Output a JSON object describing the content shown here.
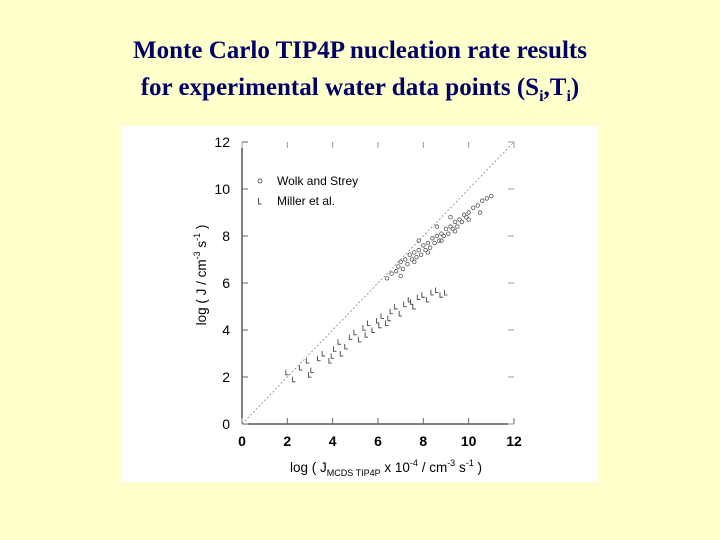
{
  "slide": {
    "title_main": "Monte Carlo TIP4P nucleation rate results",
    "title_line2_prefix": "for experimental water data points (S",
    "title_sub1": "i",
    "title_sep": ",T",
    "title_sub2": "i",
    "title_suffix": ")"
  },
  "chart_data": {
    "type": "scatter",
    "xlabel_parts": [
      "log ( J",
      "MCDS TIP4P",
      " x 10",
      "-4",
      " / cm",
      "-3",
      " s",
      "-1",
      " )"
    ],
    "ylabel_parts": [
      "log ( J / cm",
      "-3",
      " s",
      "-1",
      " )"
    ],
    "xlim": [
      0,
      12
    ],
    "ylim": [
      0,
      12
    ],
    "xticks": [
      0,
      2,
      4,
      6,
      8,
      10,
      12
    ],
    "yticks": [
      0,
      2,
      4,
      6,
      8,
      10,
      12
    ],
    "grid": false,
    "legend_position": "top-left",
    "reference_line": "y = x",
    "series": [
      {
        "name": "Wolk and Strey",
        "marker": "circle",
        "points": [
          [
            6.4,
            6.2
          ],
          [
            6.6,
            6.4
          ],
          [
            6.8,
            6.5
          ],
          [
            6.9,
            6.7
          ],
          [
            7.0,
            6.9
          ],
          [
            7.1,
            6.6
          ],
          [
            7.2,
            7.0
          ],
          [
            7.3,
            6.8
          ],
          [
            7.4,
            7.2
          ],
          [
            7.5,
            7.0
          ],
          [
            7.6,
            7.3
          ],
          [
            7.7,
            7.1
          ],
          [
            7.8,
            7.4
          ],
          [
            7.9,
            7.2
          ],
          [
            8.0,
            7.6
          ],
          [
            8.1,
            7.4
          ],
          [
            8.2,
            7.7
          ],
          [
            8.3,
            7.5
          ],
          [
            8.4,
            7.9
          ],
          [
            8.5,
            7.7
          ],
          [
            8.6,
            8.0
          ],
          [
            8.7,
            7.8
          ],
          [
            8.8,
            8.1
          ],
          [
            8.9,
            8.0
          ],
          [
            9.0,
            8.3
          ],
          [
            9.1,
            8.1
          ],
          [
            9.2,
            8.4
          ],
          [
            9.3,
            8.3
          ],
          [
            9.4,
            8.6
          ],
          [
            9.5,
            8.4
          ],
          [
            9.6,
            8.7
          ],
          [
            9.7,
            8.6
          ],
          [
            9.8,
            8.9
          ],
          [
            9.9,
            8.8
          ],
          [
            10.0,
            9.0
          ],
          [
            10.2,
            9.2
          ],
          [
            10.4,
            9.3
          ],
          [
            10.6,
            9.5
          ],
          [
            10.8,
            9.6
          ],
          [
            11.0,
            9.7
          ],
          [
            7.0,
            6.3
          ],
          [
            7.6,
            6.9
          ],
          [
            8.2,
            7.3
          ],
          [
            8.8,
            7.8
          ],
          [
            9.4,
            8.2
          ],
          [
            10.0,
            8.7
          ],
          [
            10.5,
            9.0
          ],
          [
            7.8,
            7.8
          ],
          [
            8.6,
            8.4
          ],
          [
            9.2,
            8.8
          ]
        ]
      },
      {
        "name": "Miller et al.",
        "marker": "bracket",
        "points": [
          [
            2.0,
            2.2
          ],
          [
            2.3,
            1.9
          ],
          [
            2.6,
            2.4
          ],
          [
            2.9,
            2.7
          ],
          [
            3.1,
            2.3
          ],
          [
            3.4,
            2.8
          ],
          [
            3.6,
            3.0
          ],
          [
            3.9,
            2.7
          ],
          [
            4.1,
            3.2
          ],
          [
            4.3,
            3.5
          ],
          [
            4.6,
            3.3
          ],
          [
            4.8,
            3.7
          ],
          [
            5.0,
            3.9
          ],
          [
            5.2,
            3.6
          ],
          [
            5.4,
            4.1
          ],
          [
            5.6,
            4.3
          ],
          [
            5.8,
            4.0
          ],
          [
            6.0,
            4.4
          ],
          [
            6.2,
            4.6
          ],
          [
            6.4,
            4.3
          ],
          [
            6.6,
            4.8
          ],
          [
            6.8,
            5.0
          ],
          [
            7.0,
            4.7
          ],
          [
            7.2,
            5.1
          ],
          [
            7.4,
            5.3
          ],
          [
            7.6,
            5.0
          ],
          [
            7.8,
            5.4
          ],
          [
            8.0,
            5.5
          ],
          [
            8.2,
            5.3
          ],
          [
            8.4,
            5.6
          ],
          [
            8.6,
            5.7
          ],
          [
            8.8,
            5.5
          ],
          [
            9.0,
            5.6
          ],
          [
            3.0,
            2.1
          ],
          [
            4.4,
            3.0
          ],
          [
            5.5,
            3.8
          ],
          [
            6.5,
            4.5
          ],
          [
            7.5,
            5.2
          ],
          [
            4.0,
            2.9
          ],
          [
            6.1,
            4.2
          ]
        ]
      }
    ]
  }
}
